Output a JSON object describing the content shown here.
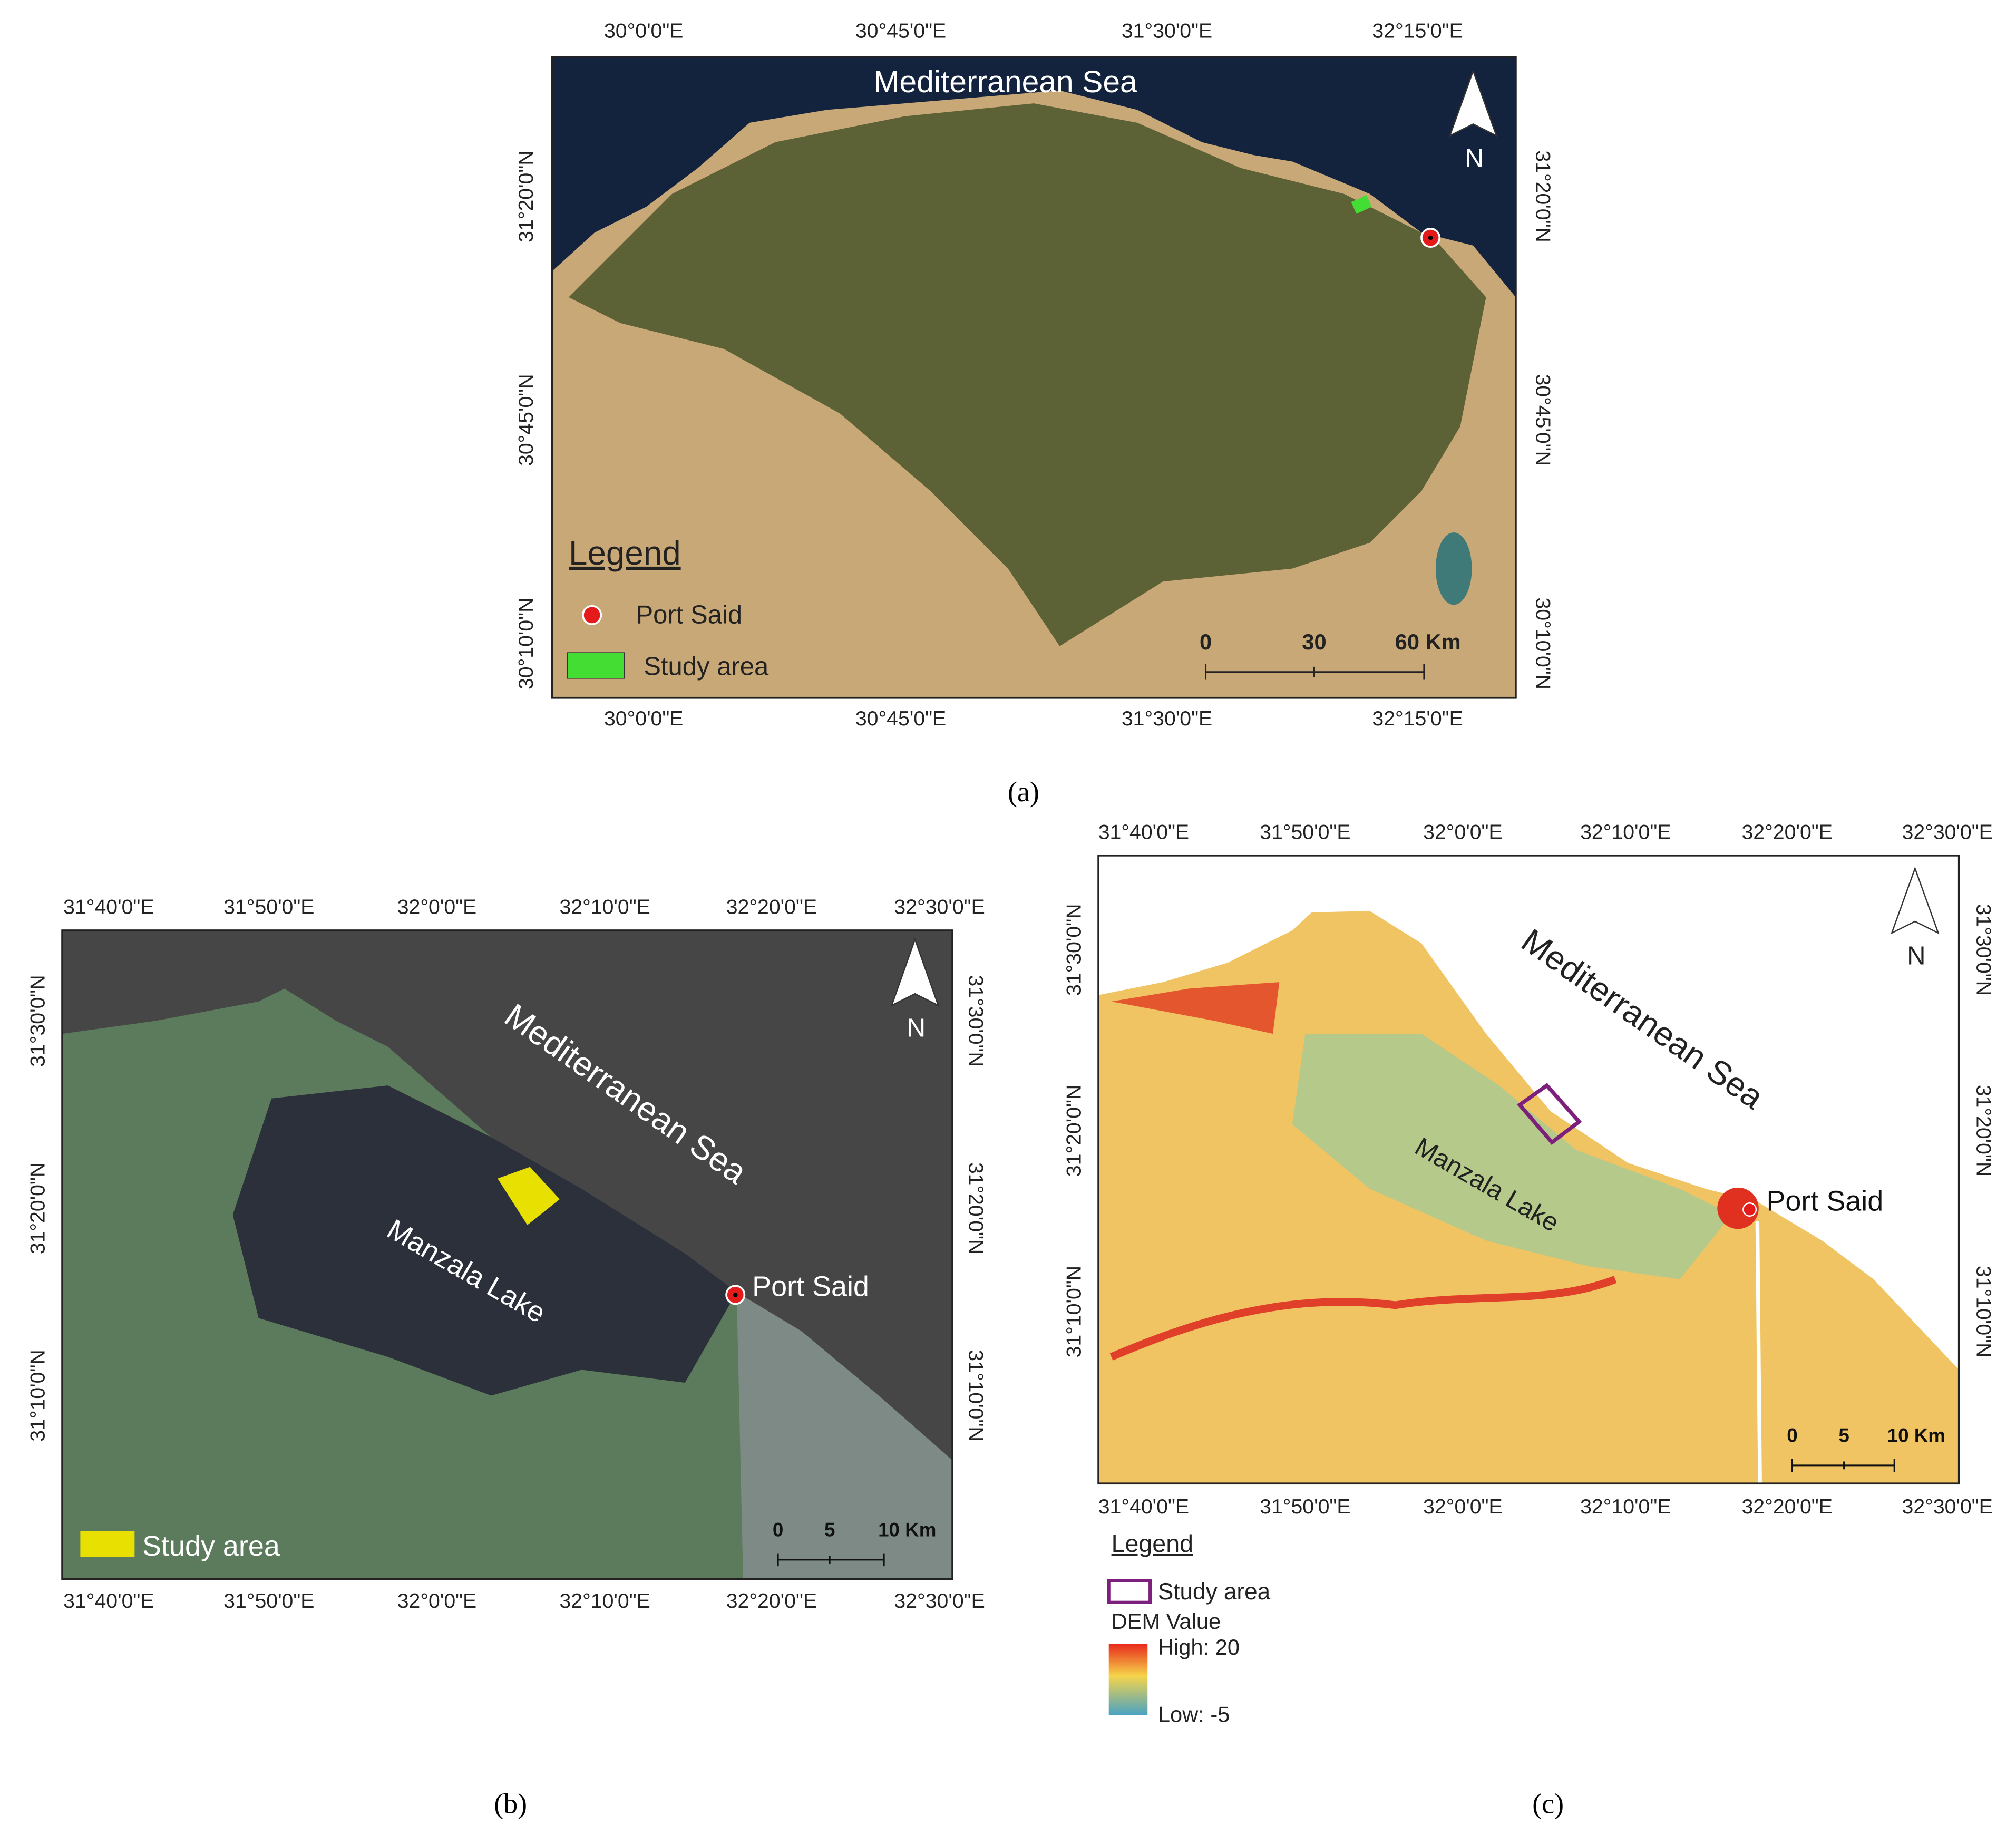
{
  "panels": [
    {
      "label": "(a)",
      "top_ticks": [
        "30°0'0\"E",
        "30°45'0\"E",
        "31°30'0\"E",
        "32°15'0\"E"
      ],
      "bottom_ticks": [
        "30°0'0\"E",
        "30°45'0\"E",
        "31°30'0\"E",
        "32°15'0\"E"
      ],
      "left_ticks": [
        "31°20'0\"N",
        "30°45'0\"N",
        "30°10'0\"N"
      ],
      "right_ticks": [
        "31°20'0\"N",
        "30°45'0\"N",
        "30°10'0\"N"
      ],
      "sea_label": "Mediterranean Sea",
      "north": "N",
      "legend_title": "Legend",
      "legend_items": [
        "Port Said",
        "Study area"
      ],
      "scale_labels": [
        "0",
        "30",
        "60 Km"
      ]
    },
    {
      "label": "(b)",
      "top_ticks": [
        "31°40'0\"E",
        "31°50'0\"E",
        "32°0'0\"E",
        "32°10'0\"E",
        "32°20'0\"E",
        "32°30'0\"E"
      ],
      "bottom_ticks": [
        "31°40'0\"E",
        "31°50'0\"E",
        "32°0'0\"E",
        "32°10'0\"E",
        "32°20'0\"E",
        "32°30'0\"E"
      ],
      "left_ticks": [
        "31°30'0\"N",
        "31°20'0\"N",
        "31°10'0\"N"
      ],
      "right_ticks": [
        "31°30'0\"N",
        "31°20'0\"N",
        "31°10'0\"N"
      ],
      "sea_label": "Mediterranean Sea",
      "lake_label": "Manzala Lake",
      "city_label": "Port Said",
      "north": "N",
      "legend_items": [
        "Study area"
      ],
      "scale_labels": [
        "0",
        "5",
        "10 Km"
      ]
    },
    {
      "label": "(c)",
      "top_ticks": [
        "31°40'0\"E",
        "31°50'0\"E",
        "32°0'0\"E",
        "32°10'0\"E",
        "32°20'0\"E",
        "32°30'0\"E"
      ],
      "bottom_ticks": [
        "31°40'0\"E",
        "31°50'0\"E",
        "32°0'0\"E",
        "32°10'0\"E",
        "32°20'0\"E",
        "32°30'0\"E"
      ],
      "left_ticks": [
        "31°30'0\"N",
        "31°20'0\"N",
        "31°10'0\"N"
      ],
      "right_ticks": [
        "31°30'0\"N",
        "31°20'0\"N",
        "31°10'0\"N"
      ],
      "sea_label": "Mediterranean Sea",
      "lake_label": "Manzala Lake",
      "city_label": "Port Said",
      "north": "N",
      "legend_title": "Legend",
      "legend_items": [
        "Study area"
      ],
      "scale_labels": [
        "0",
        "5",
        "10 Km"
      ],
      "dem_title": "DEM Value",
      "dem_high": "High: 20",
      "dem_low": "Low: -5"
    }
  ]
}
